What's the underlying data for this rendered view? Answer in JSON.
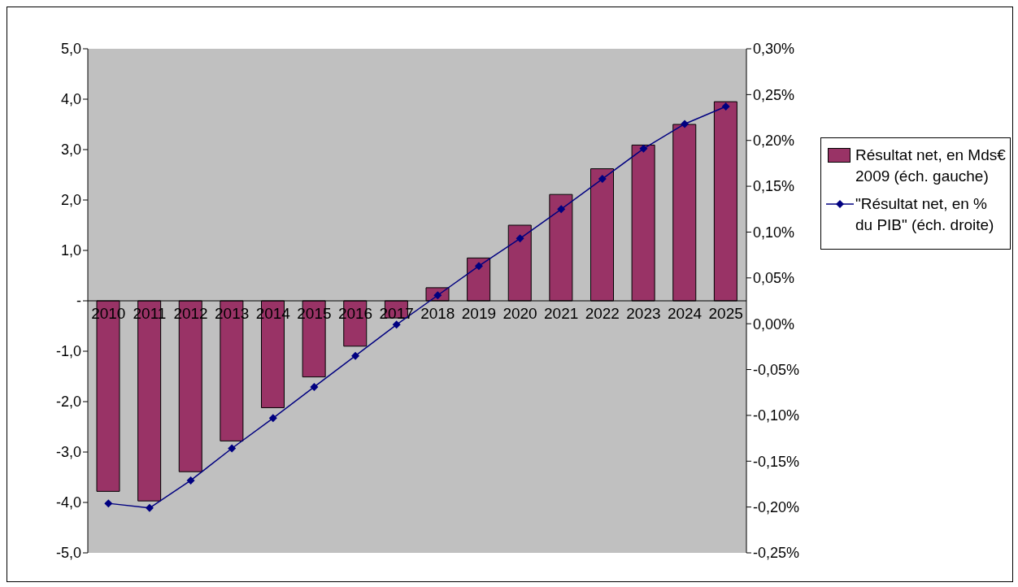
{
  "chart_data": {
    "type": "bar",
    "categories": [
      "2010",
      "2011",
      "2012",
      "2013",
      "2014",
      "2015",
      "2016",
      "2017",
      "2018",
      "2019",
      "2020",
      "2021",
      "2022",
      "2023",
      "2024",
      "2025"
    ],
    "series": [
      {
        "name": "Résultat net, en Mds€ 2009 (éch. gauche)",
        "color": "#993366",
        "values": [
          -3.78,
          -3.97,
          -3.39,
          -2.78,
          -2.12,
          -1.51,
          -0.9,
          -0.34,
          0.26,
          0.85,
          1.5,
          2.11,
          2.62,
          3.09,
          3.5,
          3.95
        ]
      },
      {
        "name": "\"Résultat net, en % du PIB\" (éch. droite)",
        "type": "line",
        "axis": "y2",
        "color": "#000080",
        "marker": "diamond",
        "values": [
          -0.196,
          -0.201,
          -0.171,
          -0.136,
          -0.103,
          -0.069,
          -0.035,
          -0.001,
          0.031,
          0.063,
          0.093,
          0.125,
          0.158,
          0.191,
          0.218,
          0.237
        ]
      }
    ],
    "ylim": [
      -5,
      5
    ],
    "yticks": [
      {
        "value": -5,
        "label": "-5,0"
      },
      {
        "value": -4,
        "label": "-4,0"
      },
      {
        "value": -3,
        "label": "-3,0"
      },
      {
        "value": -2,
        "label": "-2,0"
      },
      {
        "value": -1,
        "label": "-1,0"
      },
      {
        "value": 0,
        "label": "-"
      },
      {
        "value": 1,
        "label": "1,0"
      },
      {
        "value": 2,
        "label": "2,0"
      },
      {
        "value": 3,
        "label": "3,0"
      },
      {
        "value": 4,
        "label": "4,0"
      },
      {
        "value": 5,
        "label": "5,0"
      }
    ],
    "y2lim": [
      -0.25,
      0.3
    ],
    "y2ticks": [
      {
        "value": -0.25,
        "label": "-0,25%"
      },
      {
        "value": -0.2,
        "label": "-0,20%"
      },
      {
        "value": -0.15,
        "label": "-0,15%"
      },
      {
        "value": -0.1,
        "label": "-0,10%"
      },
      {
        "value": -0.05,
        "label": "-0,05%"
      },
      {
        "value": 0,
        "label": "0,00%"
      },
      {
        "value": 0.05,
        "label": "0,05%"
      },
      {
        "value": 0.1,
        "label": "0,10%"
      },
      {
        "value": 0.15,
        "label": "0,15%"
      },
      {
        "value": 0.2,
        "label": "0,20%"
      },
      {
        "value": 0.25,
        "label": "0,25%"
      },
      {
        "value": 0.3,
        "label": "0,30%"
      }
    ],
    "legend": "right",
    "grid": false
  }
}
